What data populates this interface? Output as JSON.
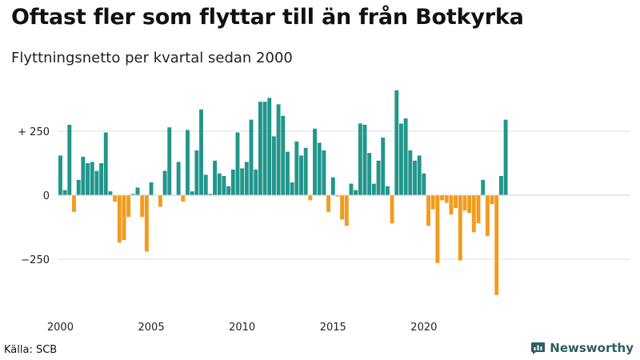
{
  "title": "Oftast fler som flyttar till än från Botkyrka",
  "subtitle": "Flyttningsnetto per kvartal sedan 2000",
  "source": "Källa: SCB",
  "brand": "Newsworthy",
  "colors": {
    "positive": "#21968c",
    "negative": "#f29b1d",
    "grid": "#dddddd",
    "brand": "#2d5f5e"
  },
  "chart_data": {
    "type": "bar",
    "title": "Oftast fler som flyttar till än från Botkyrka",
    "subtitle": "Flyttningsnetto per kvartal sedan 2000",
    "xlabel": "",
    "ylabel": "",
    "ylim": [
      -400,
      420
    ],
    "grid": true,
    "y_ticks": [
      {
        "value": 250,
        "label": "+ 250"
      },
      {
        "value": 0,
        "label": "0"
      },
      {
        "value": -250,
        "label": "−250"
      }
    ],
    "x_ticks": [
      {
        "value": 2000,
        "label": "2000"
      },
      {
        "value": 2005,
        "label": "2005"
      },
      {
        "value": 2010,
        "label": "2010"
      },
      {
        "value": 2015,
        "label": "2015"
      },
      {
        "value": 2020,
        "label": "2020"
      }
    ],
    "start_year": 2000,
    "periods_per_year": 4,
    "series": [
      {
        "name": "Flyttningsnetto",
        "values": [
          155,
          20,
          275,
          -65,
          60,
          150,
          125,
          130,
          95,
          125,
          245,
          15,
          -25,
          -185,
          -175,
          -85,
          5,
          30,
          -85,
          -220,
          50,
          0,
          -45,
          95,
          265,
          0,
          130,
          -25,
          255,
          15,
          175,
          335,
          80,
          5,
          135,
          85,
          75,
          35,
          100,
          245,
          105,
          130,
          295,
          100,
          365,
          365,
          380,
          230,
          355,
          310,
          170,
          50,
          210,
          155,
          185,
          -20,
          260,
          205,
          175,
          -65,
          70,
          -5,
          -95,
          -120,
          45,
          20,
          280,
          275,
          165,
          45,
          135,
          225,
          35,
          -110,
          410,
          280,
          300,
          175,
          135,
          155,
          85,
          -120,
          -55,
          -265,
          -20,
          -30,
          -75,
          -50,
          -255,
          -60,
          -70,
          -145,
          -110,
          60,
          -160,
          -35,
          -390,
          75,
          295
        ]
      }
    ]
  }
}
